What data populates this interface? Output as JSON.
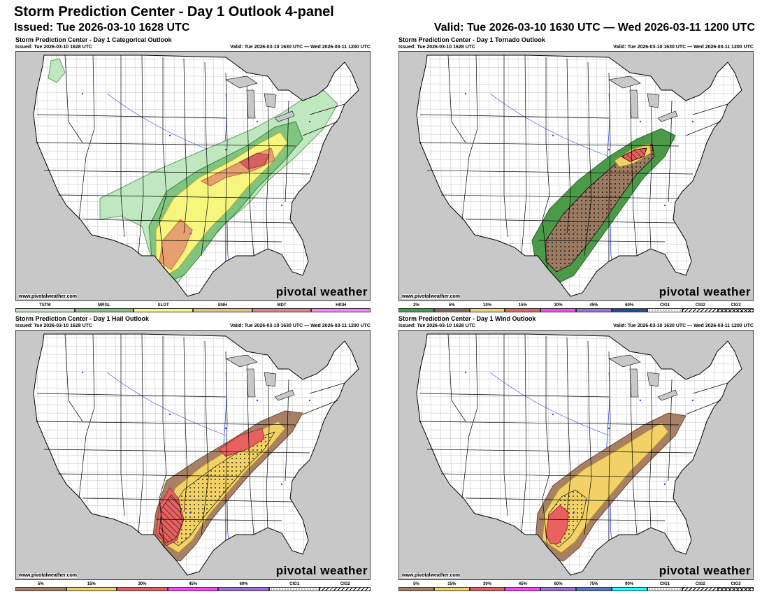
{
  "header": {
    "title": "Storm Prediction Center - Day 1 Outlook 4-panel",
    "issued": "Issued: Tue 2026-03-10 1628 UTC",
    "valid": "Valid: Tue 2026-03-10 1630 UTC — Wed 2026-03-11 1200 UTC"
  },
  "panels": [
    {
      "title": "Storm Prediction Center - Day 1 Categorical Outlook",
      "issued": "Issued: Tue 2026-03-10 1628 UTC",
      "valid": "Valid: Tue 2026-03-10 1630 UTC — Wed 2026-03-11 1200 UTC",
      "website": "www.pivotalweather.com",
      "brand": "pivotal weather",
      "legend": [
        {
          "label": "TSTM",
          "color": "#c0e8c0"
        },
        {
          "label": "MRGL",
          "color": "#7fc57f"
        },
        {
          "label": "SLGT",
          "color": "#f6f67f"
        },
        {
          "label": "ENH",
          "color": "#e6c27f"
        },
        {
          "label": "MDT",
          "color": "#e67f7f"
        },
        {
          "label": "HIGH",
          "color": "#ff7fff"
        }
      ]
    },
    {
      "title": "Storm Prediction Center - Day 1 Tornado Outlook",
      "issued": "Issued: Tue 2026-03-10 1628 UTC",
      "valid": "Valid: Tue 2026-03-10 1630 UTC — Wed 2026-03-11 1200 UTC",
      "website": "www.pivotalweather.com",
      "brand": "pivotal weather",
      "legend": [
        {
          "label": "2%",
          "color": "#4a9a4a"
        },
        {
          "label": "5%",
          "color": "#8b6b50"
        },
        {
          "label": "10%",
          "color": "#f2d266"
        },
        {
          "label": "15%",
          "color": "#e86060"
        },
        {
          "label": "30%",
          "color": "#ff44ff"
        },
        {
          "label": "45%",
          "color": "#a06ee0"
        },
        {
          "label": "60%",
          "color": "#1f4f9a"
        },
        {
          "label": "CIG1",
          "color": "#ffffff",
          "pattern": "dots"
        },
        {
          "label": "CIG2",
          "color": "#ffffff",
          "pattern": "hatch"
        },
        {
          "label": "CIG3",
          "color": "#ffffff",
          "pattern": "cross"
        }
      ]
    },
    {
      "title": "Storm Prediction Center - Day 1 Hail Outlook",
      "issued": "Issued: Tue 2026-03-10 1628 UTC",
      "valid": "Valid: Tue 2026-03-10 1630 UTC — Wed 2026-03-11 1200 UTC",
      "website": "www.pivotalweather.com",
      "brand": "pivotal weather",
      "legend": [
        {
          "label": "5%",
          "color": "#a78066"
        },
        {
          "label": "15%",
          "color": "#f2d266"
        },
        {
          "label": "30%",
          "color": "#e86060"
        },
        {
          "label": "45%",
          "color": "#ff44ff"
        },
        {
          "label": "60%",
          "color": "#a06ee0"
        },
        {
          "label": "CIG1",
          "color": "#ffffff",
          "pattern": "dots"
        },
        {
          "label": "CIG2",
          "color": "#ffffff",
          "pattern": "hatch"
        }
      ]
    },
    {
      "title": "Storm Prediction Center - Day 1 Wind Outlook",
      "issued": "Issued: Tue 2026-03-10 1628 UTC",
      "valid": "Valid: Tue 2026-03-10 1630 UTC — Wed 2026-03-11 1200 UTC",
      "website": "www.pivotalweather.com",
      "brand": "pivotal weather",
      "legend": [
        {
          "label": "5%",
          "color": "#a78066"
        },
        {
          "label": "15%",
          "color": "#f2d266"
        },
        {
          "label": "30%",
          "color": "#e86060"
        },
        {
          "label": "45%",
          "color": "#ff44ff"
        },
        {
          "label": "60%",
          "color": "#a06ee0"
        },
        {
          "label": "75%",
          "color": "#5577cc"
        },
        {
          "label": "90%",
          "color": "#22ffff"
        },
        {
          "label": "CIG1",
          "color": "#ffffff",
          "pattern": "dots"
        },
        {
          "label": "CIG2",
          "color": "#ffffff",
          "pattern": "hatch"
        },
        {
          "label": "CIG3",
          "color": "#ffffff",
          "pattern": "cross"
        }
      ]
    }
  ],
  "colors": {
    "land": "#ffffff",
    "foreign": "#c8c8c8",
    "water": "#c8c8c8",
    "state_line": "#000000",
    "county_line": "#999999",
    "river": "#3344ee"
  }
}
